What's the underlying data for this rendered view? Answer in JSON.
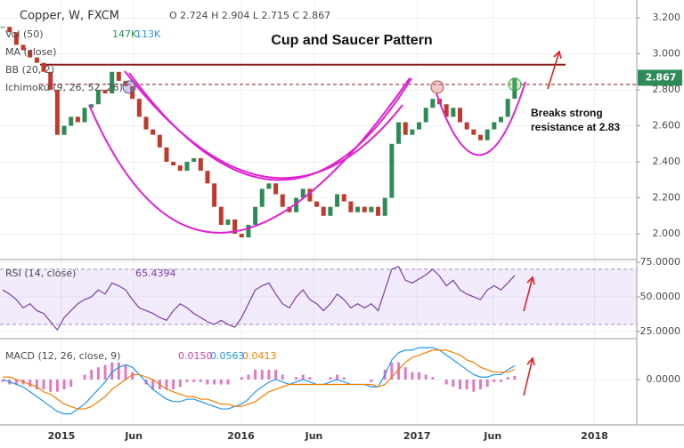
{
  "chart_data": {
    "type": "candlestick",
    "title": "Copper, W, FXCM",
    "ohlc": "O 2.724 H 2.904 L 2.715 C 2.867",
    "indicators": [
      "Vol (50)",
      "MA (close)",
      "BB (20, 2)",
      "Ichimoku (9, 26, 52, 26)"
    ],
    "volume_labels": [
      "147K",
      "113K"
    ],
    "annotations": [
      "Cup and Saucer Pattern",
      "Breaks strong",
      "resistance at 2.83"
    ],
    "up_color": "#2e8b57",
    "down_color": "#c0392b",
    "close": [
      3.15,
      3.12,
      3.05,
      3.02,
      2.98,
      2.95,
      2.9,
      2.8,
      2.55,
      2.6,
      2.65,
      2.62,
      2.7,
      2.72,
      2.8,
      2.78,
      2.9,
      2.85,
      2.82,
      2.75,
      2.65,
      2.58,
      2.55,
      2.48,
      2.4,
      2.38,
      2.35,
      2.4,
      2.42,
      2.35,
      2.28,
      2.15,
      2.05,
      2.08,
      2.0,
      1.98,
      2.05,
      2.15,
      2.25,
      2.28,
      2.22,
      2.15,
      2.12,
      2.2,
      2.25,
      2.18,
      2.15,
      2.1,
      2.15,
      2.22,
      2.18,
      2.12,
      2.15,
      2.12,
      2.15,
      2.1,
      2.2,
      2.5,
      2.62,
      2.55,
      2.58,
      2.62,
      2.7,
      2.75,
      2.72,
      2.65,
      2.7,
      2.62,
      2.58,
      2.55,
      2.52,
      2.58,
      2.62,
      2.65,
      2.75,
      2.867
    ],
    "last_price": 2.867,
    "resistance": [
      2.94,
      2.83
    ],
    "ylim": [
      1.857,
      3.299
    ],
    "yticks": [
      {
        "value": 3.2,
        "label": "3.200"
      },
      {
        "value": 3.0,
        "label": "3.000"
      },
      {
        "value": 2.8,
        "label": "2.800"
      },
      {
        "value": 2.6,
        "label": "2.600"
      },
      {
        "value": 2.4,
        "label": "2.400"
      },
      {
        "value": 2.2,
        "label": "2.200"
      },
      {
        "value": 2.0,
        "label": "2.000"
      }
    ],
    "xlim": [
      -0.4,
      92.9
    ],
    "xticks": [
      {
        "value": 8.6,
        "label": "2015"
      },
      {
        "value": 19.2,
        "label": "Jun"
      },
      {
        "value": 34.9,
        "label": "2016"
      },
      {
        "value": 45.6,
        "label": "Jun"
      },
      {
        "value": 60.7,
        "label": "2017"
      },
      {
        "value": 71.8,
        "label": "Jun"
      },
      {
        "value": 86.7,
        "label": "2018"
      }
    ],
    "rsi": {
      "title": "RSI (14, close)",
      "value_label": "65.4394",
      "color": "#7b3fa0",
      "values": [
        55,
        52,
        48,
        42,
        45,
        40,
        38,
        32,
        26,
        35,
        40,
        45,
        48,
        50,
        55,
        52,
        60,
        58,
        55,
        48,
        42,
        40,
        38,
        35,
        33,
        40,
        45,
        42,
        38,
        35,
        32,
        30,
        33,
        30,
        28,
        35,
        45,
        55,
        58,
        60,
        52,
        45,
        42,
        50,
        55,
        48,
        45,
        40,
        45,
        52,
        48,
        42,
        45,
        42,
        45,
        40,
        55,
        70,
        72,
        62,
        60,
        63,
        66,
        70,
        65,
        58,
        62,
        55,
        52,
        50,
        48,
        55,
        58,
        55,
        60,
        65.4394
      ],
      "band": [
        30,
        70
      ],
      "ylim": [
        19.7,
        77
      ],
      "yticks": [
        {
          "value": 75,
          "label": "75.0000"
        },
        {
          "value": 50,
          "label": "50.0000"
        },
        {
          "value": 25,
          "label": "25.0000"
        }
      ]
    },
    "macd": {
      "title": "MACD (12, 26, close, 9)",
      "value_labels": [
        "0.0150",
        "0.0563",
        "0.0413"
      ],
      "series": [
        {
          "name": "Histogram",
          "color": "#d63fa8",
          "values": [
            -0.01,
            -0.02,
            -0.02,
            -0.02,
            -0.03,
            -0.04,
            -0.04,
            -0.05,
            -0.05,
            -0.04,
            -0.03,
            0.0,
            0.02,
            0.04,
            0.05,
            0.06,
            0.07,
            0.07,
            0.06,
            0.03,
            0.0,
            -0.02,
            -0.04,
            -0.04,
            -0.04,
            -0.04,
            -0.03,
            -0.01,
            -0.01,
            -0.01,
            -0.02,
            -0.02,
            -0.02,
            -0.02,
            0.0,
            0.01,
            0.02,
            0.04,
            0.04,
            0.04,
            0.04,
            0.02,
            0.0,
            0.01,
            0.02,
            0.01,
            0.0,
            0.0,
            0.01,
            0.02,
            0.01,
            0.0,
            0.0,
            0.0,
            -0.01,
            0.0,
            0.04,
            0.07,
            0.07,
            0.05,
            0.03,
            0.03,
            0.02,
            0.01,
            0.0,
            -0.02,
            -0.03,
            -0.04,
            -0.04,
            -0.05,
            -0.04,
            -0.03,
            -0.01,
            -0.01,
            0.01,
            0.015
          ]
        },
        {
          "name": "MACD",
          "color": "#2196f3",
          "values": [
            0.0,
            -0.01,
            -0.02,
            -0.03,
            -0.05,
            -0.07,
            -0.09,
            -0.11,
            -0.13,
            -0.14,
            -0.14,
            -0.12,
            -0.1,
            -0.07,
            -0.04,
            -0.01,
            0.03,
            0.05,
            0.06,
            0.05,
            0.02,
            -0.01,
            -0.04,
            -0.06,
            -0.08,
            -0.09,
            -0.09,
            -0.08,
            -0.08,
            -0.09,
            -0.1,
            -0.11,
            -0.12,
            -0.12,
            -0.11,
            -0.1,
            -0.08,
            -0.05,
            -0.03,
            -0.01,
            0.0,
            -0.01,
            -0.02,
            -0.01,
            0.0,
            -0.01,
            -0.02,
            -0.02,
            -0.01,
            0.0,
            -0.01,
            -0.02,
            -0.02,
            -0.02,
            -0.03,
            -0.03,
            0.02,
            0.08,
            0.11,
            0.12,
            0.12,
            0.13,
            0.13,
            0.13,
            0.12,
            0.1,
            0.08,
            0.06,
            0.04,
            0.02,
            0.01,
            0.01,
            0.02,
            0.02,
            0.04,
            0.0563
          ]
        },
        {
          "name": "Signal",
          "color": "#f57c00",
          "values": [
            0.01,
            0.01,
            0.0,
            -0.01,
            -0.02,
            -0.03,
            -0.05,
            -0.06,
            -0.08,
            -0.1,
            -0.11,
            -0.12,
            -0.12,
            -0.11,
            -0.09,
            -0.07,
            -0.04,
            -0.02,
            0.0,
            0.02,
            0.02,
            0.01,
            0.0,
            -0.02,
            -0.04,
            -0.05,
            -0.06,
            -0.07,
            -0.07,
            -0.08,
            -0.08,
            -0.09,
            -0.1,
            -0.1,
            -0.11,
            -0.11,
            -0.1,
            -0.09,
            -0.07,
            -0.05,
            -0.04,
            -0.03,
            -0.02,
            -0.02,
            -0.02,
            -0.02,
            -0.02,
            -0.02,
            -0.02,
            -0.02,
            -0.02,
            -0.02,
            -0.02,
            -0.02,
            -0.02,
            -0.03,
            -0.02,
            0.01,
            0.04,
            0.07,
            0.09,
            0.1,
            0.11,
            0.12,
            0.12,
            0.12,
            0.11,
            0.1,
            0.08,
            0.07,
            0.05,
            0.04,
            0.03,
            0.03,
            0.03,
            0.0413
          ]
        }
      ],
      "ylim": [
        -0.185,
        0.1667
      ],
      "yticks": [
        {
          "value": 0,
          "label": "0.0000"
        }
      ]
    }
  }
}
